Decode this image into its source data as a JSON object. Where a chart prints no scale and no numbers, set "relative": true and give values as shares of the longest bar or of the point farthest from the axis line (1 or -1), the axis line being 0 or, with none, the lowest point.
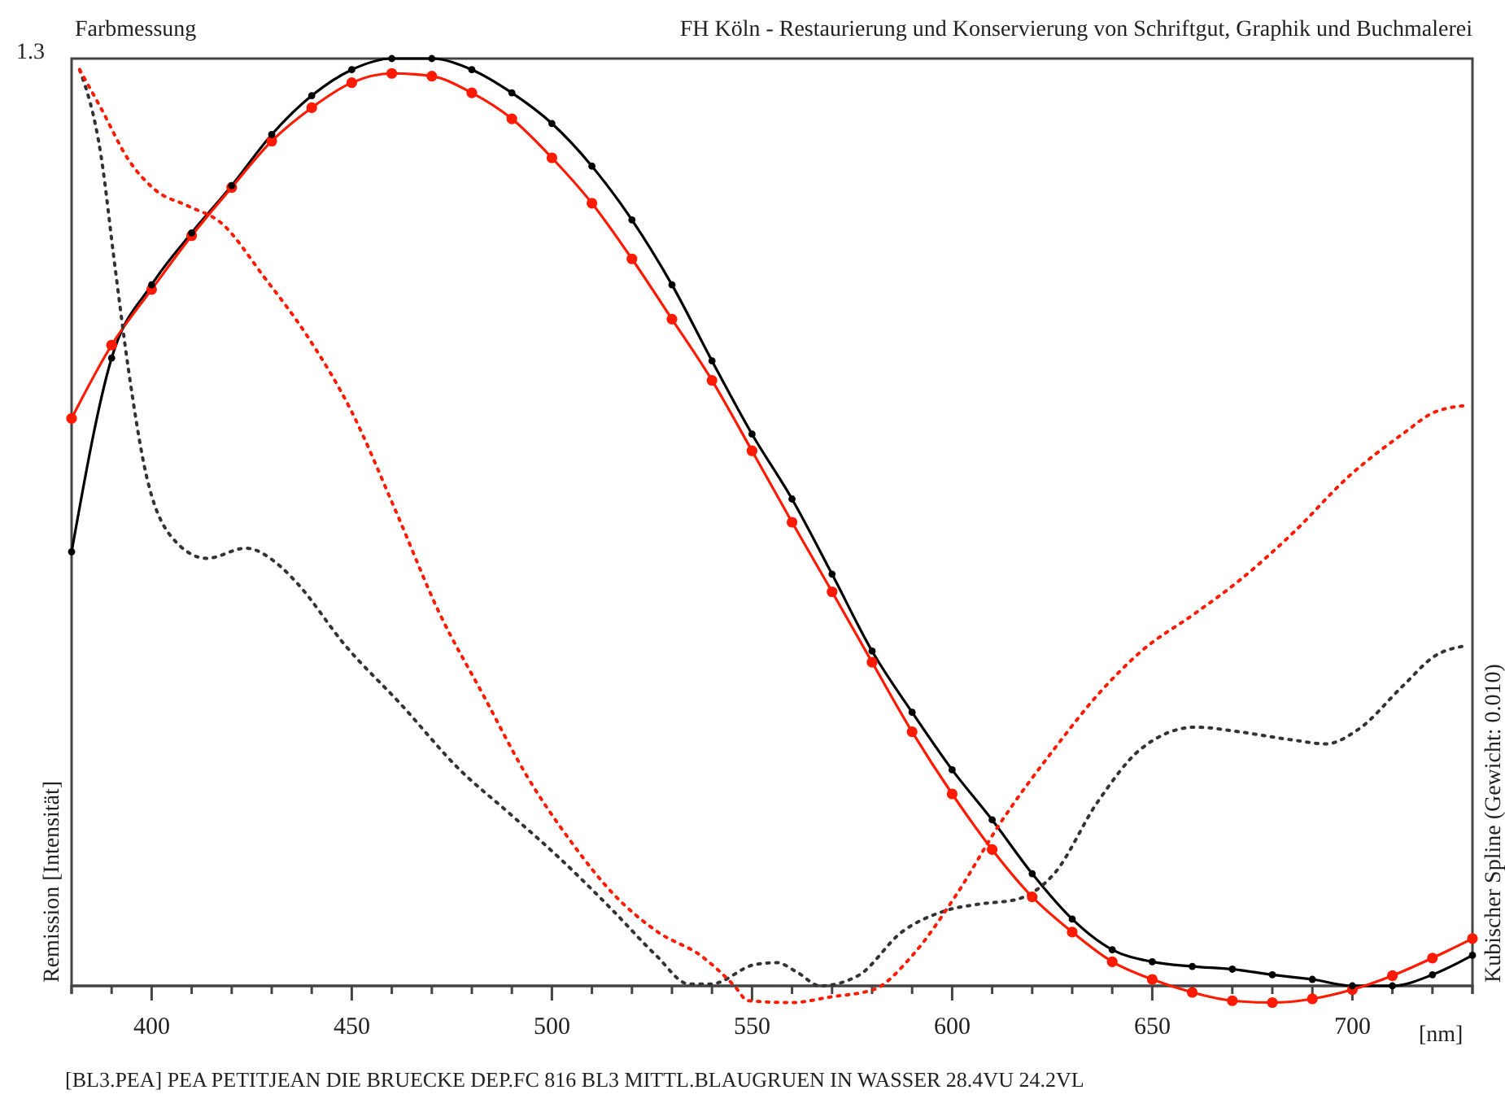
{
  "chart_data": {
    "type": "line",
    "relative": true,
    "title": "Farbmessung",
    "subtitle": "FH Köln - Restaurierung und Konservierung von Schriftgut, Graphik und Buchmalerei",
    "xlabel": "[nm]",
    "ylabel": "Remission [Intensität]",
    "y2label": "Kubischer Spline (Gewicht: 0.010)",
    "annotations": [
      "1.3",
      "[BL3.PEA] PEA PETITJEAN DIE BRUECKE DEP.FC 816  BL3 MITTL.BLAUGRUEN IN WASSER 28.4VU 24.2VL"
    ],
    "xlim": [
      380,
      730
    ],
    "xticks": [
      {
        "value": 380,
        "label": null
      },
      {
        "value": 390,
        "label": null
      },
      400,
      {
        "value": 410,
        "label": null
      },
      {
        "value": 420,
        "label": null
      },
      {
        "value": 430,
        "label": null
      },
      {
        "value": 440,
        "label": null
      },
      450,
      {
        "value": 460,
        "label": null
      },
      {
        "value": 470,
        "label": null
      },
      {
        "value": 480,
        "label": null
      },
      {
        "value": 490,
        "label": null
      },
      500,
      {
        "value": 510,
        "label": null
      },
      {
        "value": 520,
        "label": null
      },
      {
        "value": 530,
        "label": null
      },
      {
        "value": 540,
        "label": null
      },
      550,
      {
        "value": 560,
        "label": null
      },
      {
        "value": 570,
        "label": null
      },
      {
        "value": 580,
        "label": null
      },
      {
        "value": 590,
        "label": null
      },
      600,
      {
        "value": 610,
        "label": null
      },
      {
        "value": 620,
        "label": null
      },
      {
        "value": 630,
        "label": null
      },
      {
        "value": 640,
        "label": null
      },
      650,
      {
        "value": 660,
        "label": null
      },
      {
        "value": 670,
        "label": null
      },
      {
        "value": 680,
        "label": null
      },
      {
        "value": 690,
        "label": null
      },
      700,
      {
        "value": 710,
        "label": null
      },
      {
        "value": 720,
        "label": null
      },
      {
        "value": 730,
        "label": null
      }
    ],
    "x": [
      380,
      390,
      400,
      410,
      420,
      430,
      440,
      450,
      460,
      470,
      480,
      490,
      500,
      510,
      520,
      530,
      540,
      550,
      560,
      570,
      580,
      590,
      600,
      610,
      620,
      630,
      640,
      650,
      660,
      670,
      680,
      690,
      700,
      710,
      720,
      730
    ],
    "series": [
      {
        "color": "#000000",
        "marker": "circle",
        "line_style": "solid",
        "values": [
          0.468,
          0.677,
          0.756,
          0.812,
          0.863,
          0.918,
          0.96,
          0.988,
          1.0,
          1.0,
          0.988,
          0.963,
          0.93,
          0.884,
          0.826,
          0.756,
          0.674,
          0.595,
          0.525,
          0.444,
          0.361,
          0.295,
          0.233,
          0.179,
          0.121,
          0.072,
          0.039,
          0.026,
          0.021,
          0.018,
          0.012,
          0.007,
          0.0,
          0.0,
          0.012,
          0.033
        ]
      },
      {
        "color": "#ff1a00",
        "marker": "circle",
        "line_style": "solid",
        "values": [
          0.612,
          0.691,
          0.751,
          0.809,
          0.861,
          0.911,
          0.947,
          0.974,
          0.984,
          0.981,
          0.963,
          0.935,
          0.893,
          0.844,
          0.784,
          0.719,
          0.653,
          0.577,
          0.5,
          0.425,
          0.349,
          0.274,
          0.207,
          0.147,
          0.096,
          0.058,
          0.026,
          0.007,
          -0.007,
          -0.016,
          -0.018,
          -0.014,
          -0.004,
          0.011,
          0.03,
          0.051
        ]
      },
      {
        "color": "#333333",
        "marker": "none",
        "line_style": "dotted",
        "x": [
          382,
          387.4,
          390.8,
          394.2,
          398.2,
          405,
          413.8,
          423.5,
          432,
          436.2,
          448.4,
          462.2,
          477,
          489.4,
          501.6,
          515.3,
          526,
          534.3,
          539.8,
          550.7,
          556.2,
          561.5,
          567,
          576.5,
          587.4,
          598.3,
          606.4,
          615.9,
          625.5,
          636.3,
          647.3,
          660.8,
          671.7,
          685.3,
          693.4,
          701.6,
          712.5,
          720.7,
          728.8
        ],
        "values": [
          0.988,
          0.894,
          0.777,
          0.665,
          0.56,
          0.484,
          0.461,
          0.472,
          0.453,
          0.435,
          0.367,
          0.304,
          0.233,
          0.186,
          0.139,
          0.081,
          0.033,
          0.002,
          0.002,
          0.023,
          0.025,
          0.014,
          0.0,
          0.011,
          0.058,
          0.081,
          0.088,
          0.093,
          0.121,
          0.198,
          0.256,
          0.279,
          0.274,
          0.265,
          0.261,
          0.277,
          0.323,
          0.356,
          0.367
        ]
      },
      {
        "color": "#ff1a00",
        "marker": "none",
        "line_style": "dotted",
        "x": [
          382,
          387.4,
          394.2,
          401,
          409.1,
          417.3,
          428,
          439,
          450,
          460.8,
          471.9,
          482.8,
          493.8,
          504.7,
          515.6,
          526.5,
          537.4,
          545.6,
          549,
          560,
          569.5,
          580.4,
          590.1,
          601,
          611.8,
          625.6,
          636.4,
          647.3,
          660.8,
          671.7,
          685.3,
          699,
          712.5,
          720.7,
          728.8
        ],
        "values": [
          0.988,
          0.946,
          0.891,
          0.858,
          0.841,
          0.823,
          0.765,
          0.7,
          0.619,
          0.514,
          0.402,
          0.314,
          0.226,
          0.156,
          0.098,
          0.058,
          0.032,
          0.0,
          -0.016,
          -0.018,
          -0.012,
          -0.004,
          0.033,
          0.098,
          0.174,
          0.256,
          0.314,
          0.361,
          0.402,
          0.437,
          0.489,
          0.549,
          0.595,
          0.619,
          0.626
        ]
      }
    ]
  }
}
